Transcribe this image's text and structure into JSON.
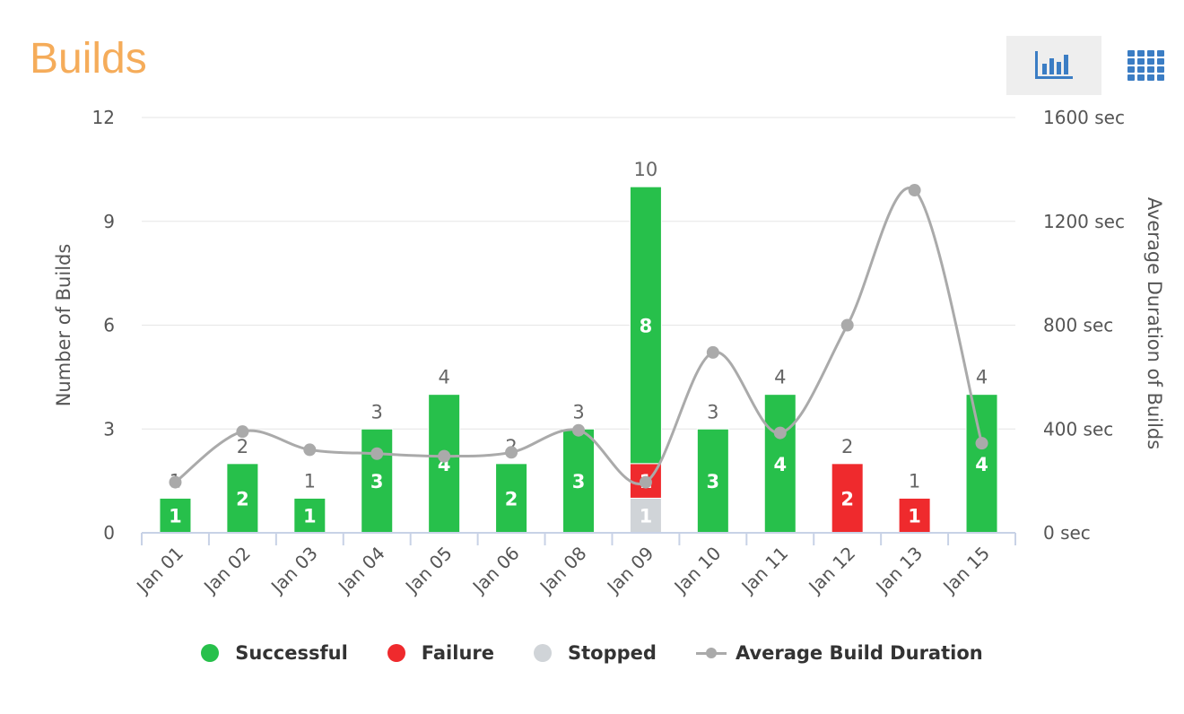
{
  "header": {
    "title": "Builds",
    "chart_view_icon": "bar-chart-icon",
    "grid_view_icon": "grid-icon"
  },
  "colors": {
    "successful": "#27c04b",
    "failure": "#ef2a2d",
    "stopped": "#d0d4d8",
    "average": "#aaaaaa",
    "title": "#f5ac5a",
    "icon": "#3b7dc4"
  },
  "chart_data": {
    "type": "bar",
    "stacked": true,
    "categories": [
      "Jan 01",
      "Jan 02",
      "Jan 03",
      "Jan 04",
      "Jan 05",
      "Jan 06",
      "Jan 08",
      "Jan 09",
      "Jan 10",
      "Jan 11",
      "Jan 12",
      "Jan 13",
      "Jan 15"
    ],
    "series": [
      {
        "name": "Successful",
        "key": "successful",
        "values": [
          1,
          2,
          1,
          3,
          4,
          2,
          3,
          8,
          3,
          4,
          0,
          0,
          4
        ]
      },
      {
        "name": "Failure",
        "key": "failure",
        "values": [
          0,
          0,
          0,
          0,
          0,
          0,
          0,
          1,
          0,
          0,
          2,
          1,
          0
        ]
      },
      {
        "name": "Stopped",
        "key": "stopped",
        "values": [
          0,
          0,
          0,
          0,
          0,
          0,
          0,
          1,
          0,
          0,
          0,
          0,
          0
        ]
      }
    ],
    "line_series": {
      "name": "Average Build Duration",
      "axis": "right",
      "values": [
        195,
        390,
        320,
        305,
        295,
        310,
        395,
        195,
        695,
        385,
        800,
        1320,
        345
      ]
    },
    "totals": [
      1,
      2,
      1,
      3,
      4,
      2,
      3,
      10,
      3,
      4,
      2,
      1,
      4
    ],
    "ylabel": "Number of Builds",
    "ylim": [
      0,
      12
    ],
    "yticks": [
      0,
      3,
      6,
      9,
      12
    ],
    "y2label": "Average Duration of Builds",
    "y2lim": [
      0,
      1600
    ],
    "y2ticks": [
      "0 sec",
      "400 sec",
      "800 sec",
      "1200 sec",
      "1600 sec"
    ],
    "grid": true,
    "legend_position": "bottom"
  }
}
